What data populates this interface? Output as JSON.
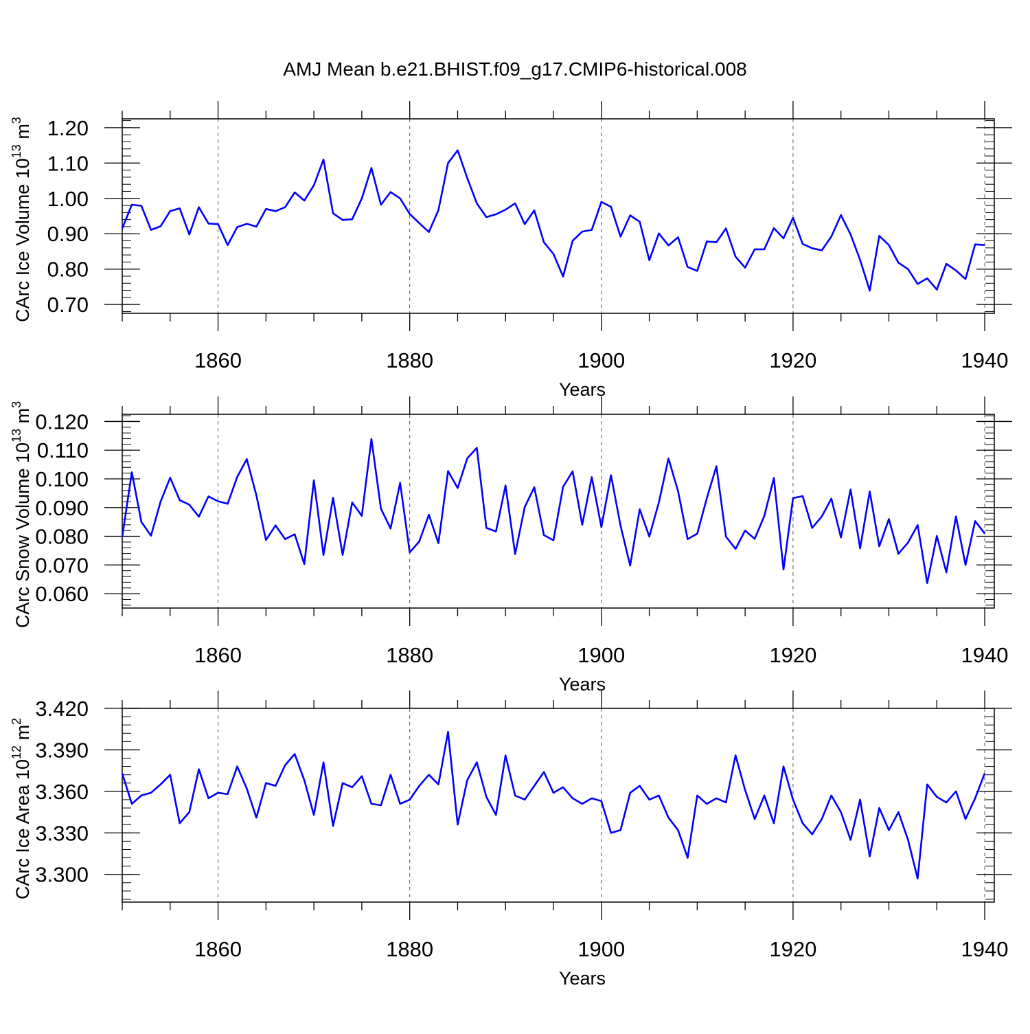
{
  "title": "AMJ Mean b.e21.BHIST.f09_g17.CMIP6-historical.008",
  "colors": {
    "line": "#0000ff",
    "axis": "#000000",
    "grid": "#555555"
  },
  "chart_data": [
    {
      "type": "line",
      "ylabel_main": "CArc Ice Volume 10",
      "ylabel_exp": "13",
      "ylabel_unit": " m",
      "ylabel_unit_exp": "3",
      "xlabel": "Years",
      "xlim": [
        1850,
        1941
      ],
      "ylim": [
        0.675,
        1.225
      ],
      "xticks": [
        1860,
        1880,
        1900,
        1920,
        1940
      ],
      "yticks": [
        0.7,
        0.8,
        0.9,
        1.0,
        1.1,
        1.2
      ],
      "ytick_labels": [
        "0.70",
        "0.80",
        "0.90",
        "1.00",
        "1.10",
        "1.20"
      ],
      "ymajor_step": 0.1,
      "yminor_step": 0.02,
      "x_start": 1850,
      "series": [
        {
          "name": "CArc Ice Volume",
          "values": [
            0.915,
            0.982,
            0.979,
            0.911,
            0.921,
            0.964,
            0.972,
            0.898,
            0.975,
            0.929,
            0.927,
            0.868,
            0.919,
            0.928,
            0.92,
            0.97,
            0.964,
            0.975,
            1.017,
            0.994,
            1.037,
            1.11,
            0.958,
            0.939,
            0.941,
            1.0,
            1.086,
            0.982,
            1.018,
            1.0,
            0.956,
            0.93,
            0.905,
            0.967,
            1.1,
            1.136,
            1.058,
            0.986,
            0.947,
            0.955,
            0.968,
            0.986,
            0.927,
            0.966,
            0.876,
            0.843,
            0.779,
            0.88,
            0.906,
            0.911,
            0.99,
            0.976,
            0.892,
            0.952,
            0.934,
            0.825,
            0.901,
            0.867,
            0.89,
            0.806,
            0.795,
            0.878,
            0.876,
            0.915,
            0.835,
            0.804,
            0.856,
            0.856,
            0.916,
            0.887,
            0.945,
            0.871,
            0.859,
            0.853,
            0.892,
            0.953,
            0.898,
            0.826,
            0.739,
            0.894,
            0.868,
            0.818,
            0.8,
            0.758,
            0.774,
            0.742,
            0.815,
            0.796,
            0.772,
            0.87,
            0.868
          ]
        }
      ]
    },
    {
      "type": "line",
      "ylabel_main": "CArc Snow Volume 10",
      "ylabel_exp": "13",
      "ylabel_unit": " m",
      "ylabel_unit_exp": "3",
      "xlabel": "Years",
      "xlim": [
        1850,
        1941
      ],
      "ylim": [
        0.055,
        0.1225
      ],
      "xticks": [
        1860,
        1880,
        1900,
        1920,
        1940
      ],
      "yticks": [
        0.06,
        0.07,
        0.08,
        0.09,
        0.1,
        0.11,
        0.12
      ],
      "ytick_labels": [
        "0.060",
        "0.070",
        "0.080",
        "0.090",
        "0.100",
        "0.110",
        "0.120"
      ],
      "ymajor_step": 0.01,
      "yminor_step": 0.002,
      "x_start": 1850,
      "series": [
        {
          "name": "CArc Snow Volume",
          "values": [
            0.0798,
            0.1023,
            0.085,
            0.0802,
            0.092,
            0.1004,
            0.0926,
            0.091,
            0.0868,
            0.0939,
            0.0922,
            0.0913,
            0.1007,
            0.1069,
            0.0942,
            0.0787,
            0.0838,
            0.079,
            0.0807,
            0.0703,
            0.0995,
            0.0735,
            0.0934,
            0.0735,
            0.0918,
            0.0871,
            0.1139,
            0.0896,
            0.0827,
            0.0986,
            0.0744,
            0.0782,
            0.0875,
            0.0776,
            0.1027,
            0.0968,
            0.1071,
            0.1108,
            0.0829,
            0.0817,
            0.0977,
            0.0738,
            0.0902,
            0.0971,
            0.0804,
            0.0786,
            0.0972,
            0.1026,
            0.084,
            0.1006,
            0.0832,
            0.1013,
            0.0837,
            0.0698,
            0.0894,
            0.0799,
            0.0918,
            0.1071,
            0.0957,
            0.079,
            0.0809,
            0.0932,
            0.1044,
            0.0799,
            0.0756,
            0.082,
            0.0791,
            0.0871,
            0.1003,
            0.0684,
            0.0933,
            0.094,
            0.0829,
            0.0869,
            0.0931,
            0.0796,
            0.0963,
            0.0758,
            0.0956,
            0.0765,
            0.086,
            0.0739,
            0.0778,
            0.0839,
            0.0637,
            0.0801,
            0.0674,
            0.0869,
            0.07,
            0.0853,
            0.081
          ]
        }
      ]
    },
    {
      "type": "line",
      "ylabel_main": "CArc Ice Area 10",
      "ylabel_exp": "12",
      "ylabel_unit": " m",
      "ylabel_unit_exp": "2",
      "xlabel": "Years",
      "xlim": [
        1850,
        1941
      ],
      "ylim": [
        3.28,
        3.42
      ],
      "xticks": [
        1860,
        1880,
        1900,
        1920,
        1940
      ],
      "yticks": [
        3.3,
        3.33,
        3.36,
        3.39,
        3.42
      ],
      "ytick_labels": [
        "3.300",
        "3.330",
        "3.360",
        "3.390",
        "3.420"
      ],
      "ymajor_step": 0.03,
      "yminor_step": 0.006,
      "x_start": 1850,
      "series": [
        {
          "name": "CArc Ice Area",
          "values": [
            3.373,
            3.351,
            3.357,
            3.359,
            3.365,
            3.372,
            3.337,
            3.345,
            3.376,
            3.355,
            3.359,
            3.358,
            3.378,
            3.362,
            3.341,
            3.366,
            3.364,
            3.379,
            3.387,
            3.368,
            3.343,
            3.381,
            3.335,
            3.366,
            3.363,
            3.371,
            3.351,
            3.35,
            3.372,
            3.351,
            3.354,
            3.364,
            3.372,
            3.365,
            3.403,
            3.336,
            3.368,
            3.381,
            3.356,
            3.343,
            3.386,
            3.357,
            3.354,
            3.364,
            3.374,
            3.359,
            3.363,
            3.355,
            3.351,
            3.355,
            3.353,
            3.33,
            3.332,
            3.359,
            3.364,
            3.354,
            3.357,
            3.341,
            3.332,
            3.312,
            3.357,
            3.351,
            3.355,
            3.352,
            3.386,
            3.361,
            3.34,
            3.357,
            3.337,
            3.378,
            3.354,
            3.337,
            3.329,
            3.34,
            3.357,
            3.345,
            3.325,
            3.354,
            3.313,
            3.348,
            3.332,
            3.345,
            3.325,
            3.297,
            3.365,
            3.356,
            3.352,
            3.36,
            3.34,
            3.355,
            3.373
          ]
        }
      ]
    }
  ]
}
